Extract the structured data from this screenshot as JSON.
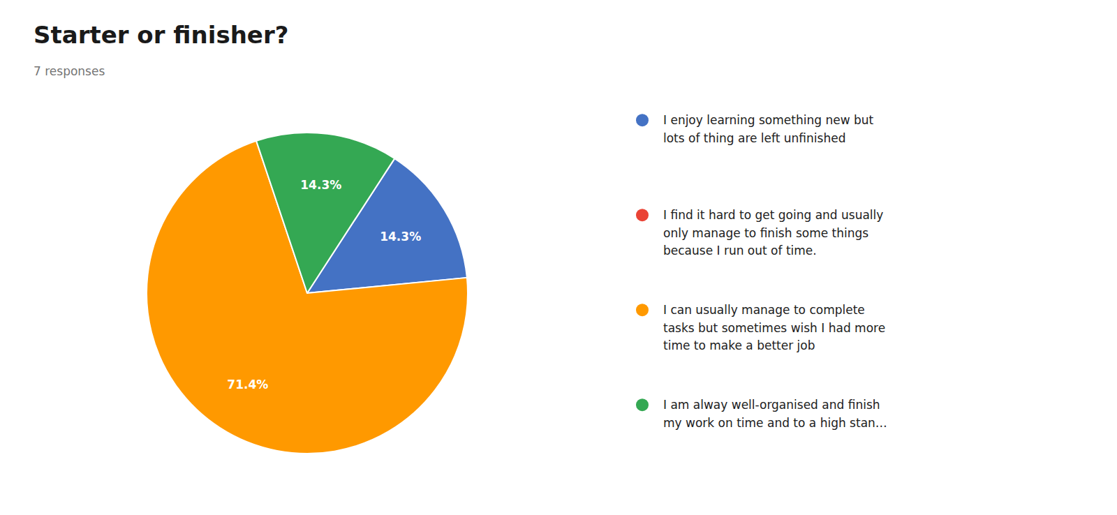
{
  "chart_data": {
    "type": "pie",
    "title": "Starter or finisher?",
    "subtitle": "7 responses",
    "categories": [
      "I enjoy learning something new but\nlots of thing are left unfinished",
      "I find it hard to get going and usually\nonly manage to finish some things\nbecause I run out of time.",
      "I can usually manage to complete\ntasks but sometimes wish I had more\ntime to make a better job",
      "I am alway well-organised and finish\nmy work on time and to a high stan…"
    ],
    "values": [
      14.3,
      0,
      71.4,
      14.3
    ],
    "value_labels": [
      "14.3%",
      null,
      "71.4%",
      "14.3%"
    ],
    "colors": [
      "#4472C4",
      "#EA4335",
      "#FF9900",
      "#34A853"
    ],
    "data_labels": true,
    "legend": "right"
  }
}
